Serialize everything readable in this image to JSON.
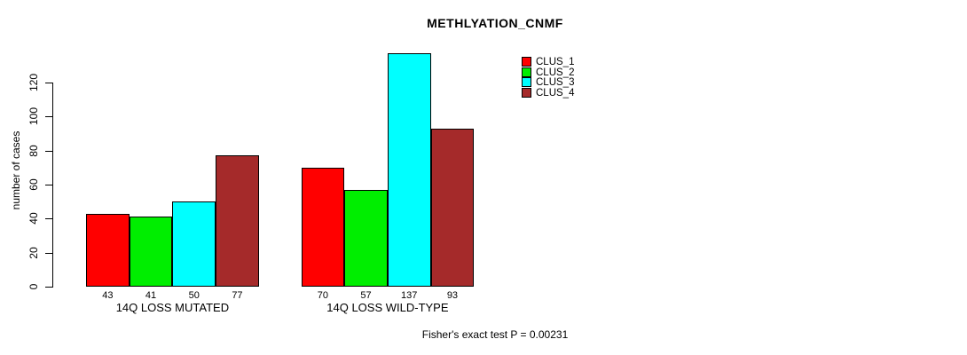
{
  "chart_data": {
    "type": "bar",
    "title": "METHLYATION_CNMF",
    "ylabel": "number of cases",
    "xlabel": "",
    "categories": [
      "14Q LOSS MUTATED",
      "14Q LOSS WILD-TYPE"
    ],
    "series": [
      {
        "name": "CLUS_1",
        "color": "#ff0000",
        "values": [
          43,
          70
        ]
      },
      {
        "name": "CLUS_2",
        "color": "#00ee00",
        "values": [
          41,
          57
        ]
      },
      {
        "name": "CLUS_3",
        "color": "#00ffff",
        "values": [
          50,
          137
        ]
      },
      {
        "name": "CLUS_4",
        "color": "#a52a2a",
        "values": [
          77,
          93
        ]
      }
    ],
    "yticks": [
      0,
      20,
      40,
      60,
      80,
      100,
      120
    ],
    "ylim": [
      0,
      137
    ],
    "grid": false,
    "legend_position": "top-right",
    "bar_outline_color": "#000000",
    "value_labels_shown": true,
    "annotation": "Fisher's exact test P = 0.00231"
  }
}
